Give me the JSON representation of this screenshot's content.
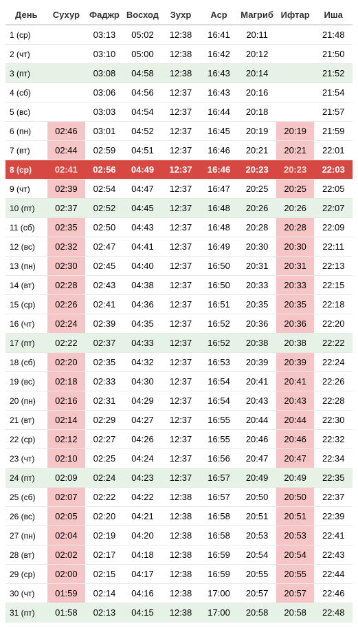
{
  "columns": [
    "День",
    "Сухур",
    "Фаджр",
    "Восход",
    "Зухр",
    "Аср",
    "Магриб",
    "Ифтар",
    "Иша"
  ],
  "rows": [
    {
      "day": "1 (ср)",
      "suhur": "",
      "fajr": "03:13",
      "sunrise": "05:02",
      "dhuhr": "12:38",
      "asr": "16:41",
      "maghrib": "20:11",
      "iftar": "",
      "isha": "21:48",
      "rowType": "",
      "suhurPink": false,
      "iftarPink": false
    },
    {
      "day": "2 (чт)",
      "suhur": "",
      "fajr": "03:10",
      "sunrise": "05:00",
      "dhuhr": "12:38",
      "asr": "16:42",
      "maghrib": "20:12",
      "iftar": "",
      "isha": "21:50",
      "rowType": "",
      "suhurPink": false,
      "iftarPink": false
    },
    {
      "day": "3 (пт)",
      "suhur": "",
      "fajr": "03:08",
      "sunrise": "04:58",
      "dhuhr": "12:38",
      "asr": "16:43",
      "maghrib": "20:14",
      "iftar": "",
      "isha": "21:52",
      "rowType": "green",
      "suhurPink": false,
      "iftarPink": false
    },
    {
      "day": "4 (сб)",
      "suhur": "",
      "fajr": "03:06",
      "sunrise": "04:56",
      "dhuhr": "12:37",
      "asr": "16:43",
      "maghrib": "20:16",
      "iftar": "",
      "isha": "21:54",
      "rowType": "",
      "suhurPink": false,
      "iftarPink": false
    },
    {
      "day": "5 (вс)",
      "suhur": "",
      "fajr": "03:03",
      "sunrise": "04:54",
      "dhuhr": "12:37",
      "asr": "16:44",
      "maghrib": "20:18",
      "iftar": "",
      "isha": "21:57",
      "rowType": "",
      "suhurPink": false,
      "iftarPink": false
    },
    {
      "day": "6 (пн)",
      "suhur": "02:46",
      "fajr": "03:01",
      "sunrise": "04:52",
      "dhuhr": "12:37",
      "asr": "16:45",
      "maghrib": "20:19",
      "iftar": "20:19",
      "isha": "21:59",
      "rowType": "",
      "suhurPink": true,
      "iftarPink": true
    },
    {
      "day": "7 (вт)",
      "suhur": "02:44",
      "fajr": "02:59",
      "sunrise": "04:51",
      "dhuhr": "12:37",
      "asr": "16:46",
      "maghrib": "20:21",
      "iftar": "20:21",
      "isha": "22:01",
      "rowType": "",
      "suhurPink": true,
      "iftarPink": true
    },
    {
      "day": "8 (ср)",
      "suhur": "02:41",
      "fajr": "02:56",
      "sunrise": "04:49",
      "dhuhr": "12:37",
      "asr": "16:46",
      "maghrib": "20:23",
      "iftar": "20:23",
      "isha": "22:03",
      "rowType": "red",
      "suhurPink": true,
      "iftarPink": true
    },
    {
      "day": "9 (чт)",
      "suhur": "02:39",
      "fajr": "02:54",
      "sunrise": "04:47",
      "dhuhr": "12:37",
      "asr": "16:47",
      "maghrib": "20:25",
      "iftar": "20:25",
      "isha": "22:05",
      "rowType": "",
      "suhurPink": true,
      "iftarPink": true
    },
    {
      "day": "10 (пт)",
      "suhur": "02:37",
      "fajr": "02:52",
      "sunrise": "04:45",
      "dhuhr": "12:37",
      "asr": "16:48",
      "maghrib": "20:26",
      "iftar": "20:26",
      "isha": "22:07",
      "rowType": "green",
      "suhurPink": true,
      "iftarPink": true
    },
    {
      "day": "11 (сб)",
      "suhur": "02:35",
      "fajr": "02:50",
      "sunrise": "04:43",
      "dhuhr": "12:37",
      "asr": "16:48",
      "maghrib": "20:28",
      "iftar": "20:28",
      "isha": "22:09",
      "rowType": "",
      "suhurPink": true,
      "iftarPink": true
    },
    {
      "day": "12 (вс)",
      "suhur": "02:32",
      "fajr": "02:47",
      "sunrise": "04:41",
      "dhuhr": "12:37",
      "asr": "16:49",
      "maghrib": "20:30",
      "iftar": "20:30",
      "isha": "22:11",
      "rowType": "",
      "suhurPink": true,
      "iftarPink": true
    },
    {
      "day": "13 (пн)",
      "suhur": "02:30",
      "fajr": "02:45",
      "sunrise": "04:40",
      "dhuhr": "12:37",
      "asr": "16:50",
      "maghrib": "20:31",
      "iftar": "20:31",
      "isha": "22:13",
      "rowType": "",
      "suhurPink": true,
      "iftarPink": true
    },
    {
      "day": "14 (вт)",
      "suhur": "02:28",
      "fajr": "02:43",
      "sunrise": "04:38",
      "dhuhr": "12:37",
      "asr": "16:50",
      "maghrib": "20:33",
      "iftar": "20:33",
      "isha": "22:15",
      "rowType": "",
      "suhurPink": true,
      "iftarPink": true
    },
    {
      "day": "15 (ср)",
      "suhur": "02:26",
      "fajr": "02:41",
      "sunrise": "04:36",
      "dhuhr": "12:37",
      "asr": "16:51",
      "maghrib": "20:35",
      "iftar": "20:35",
      "isha": "22:18",
      "rowType": "",
      "suhurPink": true,
      "iftarPink": true
    },
    {
      "day": "16 (чт)",
      "suhur": "02:24",
      "fajr": "02:39",
      "sunrise": "04:35",
      "dhuhr": "12:37",
      "asr": "16:52",
      "maghrib": "20:36",
      "iftar": "20:36",
      "isha": "22:20",
      "rowType": "",
      "suhurPink": true,
      "iftarPink": true
    },
    {
      "day": "17 (пт)",
      "suhur": "02:22",
      "fajr": "02:37",
      "sunrise": "04:33",
      "dhuhr": "12:37",
      "asr": "16:52",
      "maghrib": "20:38",
      "iftar": "20:38",
      "isha": "22:22",
      "rowType": "green",
      "suhurPink": true,
      "iftarPink": true
    },
    {
      "day": "18 (сб)",
      "suhur": "02:20",
      "fajr": "02:35",
      "sunrise": "04:32",
      "dhuhr": "12:37",
      "asr": "16:53",
      "maghrib": "20:39",
      "iftar": "20:39",
      "isha": "22:24",
      "rowType": "",
      "suhurPink": true,
      "iftarPink": true
    },
    {
      "day": "19 (вс)",
      "suhur": "02:18",
      "fajr": "02:33",
      "sunrise": "04:30",
      "dhuhr": "12:37",
      "asr": "16:54",
      "maghrib": "20:41",
      "iftar": "20:41",
      "isha": "22:26",
      "rowType": "",
      "suhurPink": true,
      "iftarPink": true
    },
    {
      "day": "20 (пн)",
      "suhur": "02:16",
      "fajr": "02:31",
      "sunrise": "04:29",
      "dhuhr": "12:37",
      "asr": "16:54",
      "maghrib": "20:43",
      "iftar": "20:43",
      "isha": "22:28",
      "rowType": "",
      "suhurPink": true,
      "iftarPink": true
    },
    {
      "day": "21 (вт)",
      "suhur": "02:14",
      "fajr": "02:29",
      "sunrise": "04:27",
      "dhuhr": "12:37",
      "asr": "16:55",
      "maghrib": "20:44",
      "iftar": "20:44",
      "isha": "22:30",
      "rowType": "",
      "suhurPink": true,
      "iftarPink": true
    },
    {
      "day": "22 (ср)",
      "suhur": "02:12",
      "fajr": "02:27",
      "sunrise": "04:26",
      "dhuhr": "12:37",
      "asr": "16:55",
      "maghrib": "20:46",
      "iftar": "20:46",
      "isha": "22:32",
      "rowType": "",
      "suhurPink": true,
      "iftarPink": true
    },
    {
      "day": "23 (чт)",
      "suhur": "02:10",
      "fajr": "02:25",
      "sunrise": "04:24",
      "dhuhr": "12:37",
      "asr": "16:56",
      "maghrib": "20:47",
      "iftar": "20:47",
      "isha": "22:34",
      "rowType": "",
      "suhurPink": true,
      "iftarPink": true
    },
    {
      "day": "24 (пт)",
      "suhur": "02:09",
      "fajr": "02:24",
      "sunrise": "04:23",
      "dhuhr": "12:37",
      "asr": "16:57",
      "maghrib": "20:49",
      "iftar": "20:49",
      "isha": "22:35",
      "rowType": "green",
      "suhurPink": true,
      "iftarPink": true
    },
    {
      "day": "25 (сб)",
      "suhur": "02:07",
      "fajr": "02:22",
      "sunrise": "04:22",
      "dhuhr": "12:38",
      "asr": "16:57",
      "maghrib": "20:50",
      "iftar": "20:50",
      "isha": "22:37",
      "rowType": "",
      "suhurPink": true,
      "iftarPink": true
    },
    {
      "day": "26 (вс)",
      "suhur": "02:05",
      "fajr": "02:20",
      "sunrise": "04:21",
      "dhuhr": "12:38",
      "asr": "16:58",
      "maghrib": "20:51",
      "iftar": "20:51",
      "isha": "22:39",
      "rowType": "",
      "suhurPink": true,
      "iftarPink": true
    },
    {
      "day": "27 (пн)",
      "suhur": "02:04",
      "fajr": "02:19",
      "sunrise": "04:20",
      "dhuhr": "12:38",
      "asr": "16:58",
      "maghrib": "20:53",
      "iftar": "20:53",
      "isha": "22:41",
      "rowType": "",
      "suhurPink": true,
      "iftarPink": true
    },
    {
      "day": "28 (вт)",
      "suhur": "02:02",
      "fajr": "02:17",
      "sunrise": "04:18",
      "dhuhr": "12:38",
      "asr": "16:59",
      "maghrib": "20:54",
      "iftar": "20:54",
      "isha": "22:43",
      "rowType": "",
      "suhurPink": true,
      "iftarPink": true
    },
    {
      "day": "29 (ср)",
      "suhur": "02:00",
      "fajr": "02:15",
      "sunrise": "04:17",
      "dhuhr": "12:38",
      "asr": "16:59",
      "maghrib": "20:55",
      "iftar": "20:55",
      "isha": "22:44",
      "rowType": "",
      "suhurPink": true,
      "iftarPink": true
    },
    {
      "day": "30 (чт)",
      "suhur": "01:59",
      "fajr": "02:14",
      "sunrise": "04:16",
      "dhuhr": "12:38",
      "asr": "17:00",
      "maghrib": "20:57",
      "iftar": "20:57",
      "isha": "22:46",
      "rowType": "",
      "suhurPink": true,
      "iftarPink": true
    },
    {
      "day": "31 (пт)",
      "suhur": "01:58",
      "fajr": "02:13",
      "sunrise": "04:15",
      "dhuhr": "12:38",
      "asr": "17:00",
      "maghrib": "20:58",
      "iftar": "20:58",
      "isha": "22:48",
      "rowType": "green",
      "suhurPink": true,
      "iftarPink": true
    }
  ],
  "colors": {
    "greenRow": "#e5f2e5",
    "pinkCell": "#f6c5c5",
    "redRow": "#d84843",
    "border": "#e8e8e8"
  }
}
